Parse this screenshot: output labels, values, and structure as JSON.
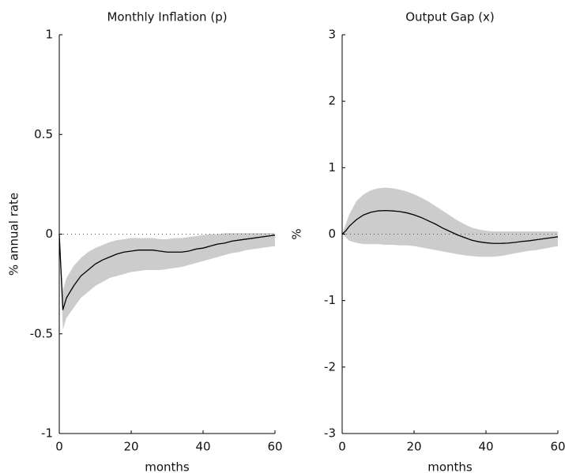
{
  "chart_data": [
    {
      "type": "line",
      "title": "Monthly Inflation (p)",
      "xlabel": "months",
      "ylabel": "% annual rate",
      "x": [
        0,
        1,
        2,
        4,
        6,
        8,
        10,
        12,
        14,
        16,
        18,
        20,
        22,
        24,
        26,
        28,
        30,
        32,
        34,
        36,
        38,
        40,
        42,
        44,
        46,
        48,
        50,
        52,
        54,
        56,
        58,
        60
      ],
      "series": [
        {
          "color": "#000000",
          "values": [
            0,
            -0.38,
            -0.32,
            -0.26,
            -0.21,
            -0.18,
            -0.15,
            -0.13,
            -0.115,
            -0.1,
            -0.09,
            -0.085,
            -0.08,
            -0.08,
            -0.08,
            -0.085,
            -0.09,
            -0.09,
            -0.09,
            -0.085,
            -0.075,
            -0.07,
            -0.06,
            -0.05,
            -0.045,
            -0.035,
            -0.03,
            -0.025,
            -0.02,
            -0.015,
            -0.01,
            -0.005
          ]
        }
      ],
      "band": {
        "color": "#cccccc",
        "upper": [
          0,
          -0.28,
          -0.22,
          -0.16,
          -0.12,
          -0.09,
          -0.07,
          -0.055,
          -0.04,
          -0.03,
          -0.025,
          -0.02,
          -0.02,
          -0.02,
          -0.02,
          -0.025,
          -0.025,
          -0.02,
          -0.02,
          -0.015,
          -0.01,
          -0.005,
          0,
          0,
          0.005,
          0.005,
          0.005,
          0.005,
          0.005,
          0.005,
          0.005,
          0.005
        ],
        "lower": [
          0,
          -0.48,
          -0.42,
          -0.37,
          -0.32,
          -0.29,
          -0.26,
          -0.24,
          -0.22,
          -0.21,
          -0.2,
          -0.19,
          -0.185,
          -0.18,
          -0.18,
          -0.18,
          -0.175,
          -0.17,
          -0.165,
          -0.155,
          -0.145,
          -0.135,
          -0.125,
          -0.115,
          -0.105,
          -0.095,
          -0.09,
          -0.08,
          -0.075,
          -0.07,
          -0.065,
          -0.06
        ]
      },
      "xlim": [
        0,
        60
      ],
      "xticks": [
        0,
        20,
        40,
        60
      ],
      "ylim": [
        -1,
        1
      ],
      "yticks": [
        -1,
        -0.5,
        0,
        0.5,
        1
      ],
      "zero_line": true
    },
    {
      "type": "line",
      "title": "Output Gap (x)",
      "xlabel": "months",
      "ylabel": "%",
      "x": [
        0,
        1,
        2,
        4,
        6,
        8,
        10,
        12,
        14,
        16,
        18,
        20,
        22,
        24,
        26,
        28,
        30,
        32,
        34,
        36,
        38,
        40,
        42,
        44,
        46,
        48,
        50,
        52,
        54,
        56,
        58,
        60
      ],
      "series": [
        {
          "color": "#000000",
          "values": [
            0,
            0.05,
            0.12,
            0.22,
            0.29,
            0.33,
            0.35,
            0.355,
            0.35,
            0.34,
            0.32,
            0.29,
            0.25,
            0.2,
            0.15,
            0.09,
            0.04,
            -0.01,
            -0.05,
            -0.09,
            -0.115,
            -0.13,
            -0.14,
            -0.14,
            -0.135,
            -0.125,
            -0.11,
            -0.1,
            -0.085,
            -0.07,
            -0.055,
            -0.04
          ]
        }
      ],
      "band": {
        "color": "#cccccc",
        "upper": [
          0,
          0.15,
          0.3,
          0.5,
          0.6,
          0.66,
          0.69,
          0.7,
          0.69,
          0.67,
          0.64,
          0.6,
          0.55,
          0.49,
          0.42,
          0.35,
          0.28,
          0.21,
          0.15,
          0.1,
          0.07,
          0.05,
          0.04,
          0.04,
          0.04,
          0.04,
          0.04,
          0.04,
          0.04,
          0.04,
          0.04,
          0.04
        ],
        "lower": [
          0,
          -0.05,
          -0.1,
          -0.13,
          -0.15,
          -0.15,
          -0.15,
          -0.16,
          -0.16,
          -0.17,
          -0.17,
          -0.18,
          -0.2,
          -0.22,
          -0.24,
          -0.26,
          -0.28,
          -0.3,
          -0.32,
          -0.33,
          -0.34,
          -0.34,
          -0.34,
          -0.33,
          -0.31,
          -0.29,
          -0.27,
          -0.25,
          -0.24,
          -0.22,
          -0.2,
          -0.18
        ]
      },
      "xlim": [
        0,
        60
      ],
      "xticks": [
        0,
        20,
        40,
        60
      ],
      "ylim": [
        -3,
        3
      ],
      "yticks": [
        -3,
        -2,
        -1,
        0,
        1,
        2,
        3
      ],
      "zero_line": true
    }
  ]
}
